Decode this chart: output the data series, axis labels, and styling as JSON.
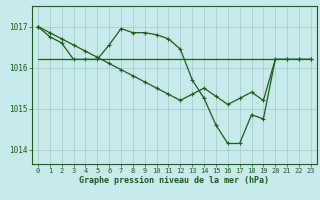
{
  "background_color": "#c8eaea",
  "grid_color": "#a0c8c8",
  "line_color": "#1a5c1a",
  "ylabel_ticks": [
    1014,
    1015,
    1016,
    1017
  ],
  "xlabel": "Graphe pression niveau de la mer (hPa)",
  "xlabel_fontsize": 6.0,
  "tick_fontsize": 5.5,
  "xlim": [
    -0.5,
    23.5
  ],
  "ylim": [
    1013.65,
    1017.5
  ],
  "curve1_x": [
    0,
    1,
    2,
    3,
    4,
    5,
    6,
    7,
    8,
    9,
    10,
    11,
    12,
    13,
    14,
    15,
    16,
    17,
    18,
    19,
    20,
    21,
    22,
    23
  ],
  "curve1_y": [
    1017.0,
    1016.75,
    1016.6,
    1016.2,
    1016.2,
    1016.2,
    1016.55,
    1016.95,
    1016.85,
    1016.85,
    1016.8,
    1016.7,
    1016.45,
    1015.7,
    1015.25,
    1014.6,
    1014.15,
    1014.15,
    1014.85,
    1014.75,
    1016.2,
    1016.2,
    1016.2,
    1016.2
  ],
  "curve2_x": [
    0,
    1,
    2,
    3,
    4,
    5,
    6,
    7,
    8,
    9,
    10,
    11,
    12,
    13,
    14,
    15,
    16,
    17,
    18,
    19,
    20,
    21,
    22,
    23
  ],
  "curve2_y": [
    1017.0,
    1016.85,
    1016.7,
    1016.55,
    1016.4,
    1016.25,
    1016.1,
    1015.95,
    1015.8,
    1015.65,
    1015.5,
    1015.35,
    1015.2,
    1015.35,
    1015.5,
    1015.3,
    1015.1,
    1015.25,
    1015.4,
    1015.2,
    1016.2,
    1016.2,
    1016.2,
    1016.2
  ],
  "curve3_x": [
    0,
    23
  ],
  "curve3_y": [
    1016.2,
    1016.2
  ]
}
